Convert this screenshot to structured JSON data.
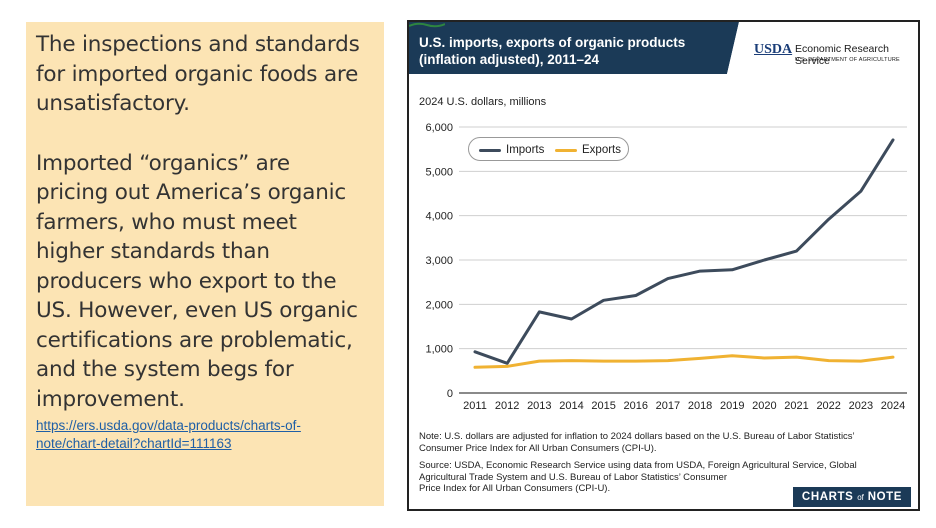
{
  "note": {
    "paragraph_1": "The inspections and standards\nfor imported organic foods are\nunsatisfactory.",
    "paragraph_2": "Imported “organics” are\npricing out America’s organic\nfarmers, who must meet\nhigher standards than\nproducers who export to the\nUS. However, even US organic\ncertifications are problematic,\nand the system begs for\nimprovement.",
    "link": "https://ers.usda.gov/data-products/charts-of-\nnote/chart-detail?chartId=111163"
  },
  "header": {
    "usda_logo_text": "USDA",
    "agency_name": "Economic Research Service",
    "department": "U.S. DEPARTMENT OF AGRICULTURE"
  },
  "footer": {
    "note": "Note: U.S. dollars are adjusted for inflation to 2024 dollars based on the U.S. Bureau of Labor Statistics’\nConsumer Price Index for All Urban Consumers (CPI-U).",
    "source": "Source: USDA, Economic Research Service using data from USDA, Foreign Agricultural Service, Global\nAgricultural Trade System and U.S. Bureau of Labor Statistics’ Consumer\nPrice Index for All Urban Consumers (CPI-U).",
    "badge_left": "CHARTS",
    "badge_of": "of",
    "badge_right": "NOTE"
  },
  "colors": {
    "header_bg": "#1b3a57",
    "imports": "#3d4b5c",
    "exports": "#f0b232",
    "note_bg": "#fce4b4",
    "usda_green": "#2e8540",
    "usda_blue": "#1a3d78"
  },
  "chart_data": {
    "type": "line",
    "title": "U.S. imports, exports of organic products\n(inflation adjusted), 2011–24",
    "ylabel": "2024 U.S. dollars, millions",
    "xlabel": "",
    "x": [
      2011,
      2012,
      2013,
      2014,
      2015,
      2016,
      2017,
      2018,
      2019,
      2020,
      2021,
      2022,
      2023,
      2024
    ],
    "ylim": [
      0,
      6000
    ],
    "yticks": [
      0,
      1000,
      2000,
      3000,
      4000,
      5000,
      6000
    ],
    "ytick_labels": [
      "0",
      "1,000",
      "2,000",
      "3,000",
      "4,000",
      "5,000",
      "6,000"
    ],
    "grid": true,
    "legend": "top-left",
    "series": [
      {
        "name": "Imports",
        "values": [
          930,
          670,
          1830,
          1670,
          2090,
          2200,
          2580,
          2750,
          2780,
          3000,
          3200,
          3920,
          4550,
          5710
        ]
      },
      {
        "name": "Exports",
        "values": [
          580,
          600,
          720,
          730,
          720,
          720,
          730,
          780,
          840,
          790,
          810,
          730,
          720,
          810
        ]
      }
    ]
  }
}
